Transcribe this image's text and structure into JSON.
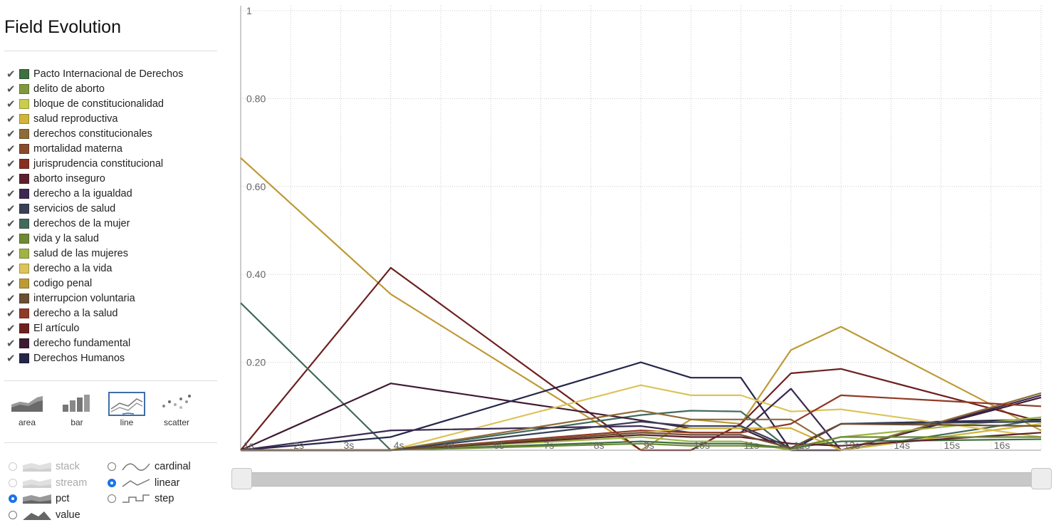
{
  "app": {
    "title": "Field Evolution"
  },
  "legend": [
    {
      "label": "Pacto Internacional de Derechos",
      "color": "#3e7040"
    },
    {
      "label": "delito de aborto",
      "color": "#7f9a3c"
    },
    {
      "label": "bloque de constitucionalidad",
      "color": "#c9cc4e"
    },
    {
      "label": "salud reproductiva",
      "color": "#d1b43c"
    },
    {
      "label": "derechos constitucionales",
      "color": "#8f6b38"
    },
    {
      "label": "mortalidad materna",
      "color": "#8a4a2c"
    },
    {
      "label": "jurisprudencia constitucional",
      "color": "#862f22"
    },
    {
      "label": "aborto inseguro",
      "color": "#5e1f2c"
    },
    {
      "label": "derecho a la igualdad",
      "color": "#3c2a52"
    },
    {
      "label": "servicios de salud",
      "color": "#383f56"
    },
    {
      "label": "derechos de la mujer",
      "color": "#426a5c"
    },
    {
      "label": "vida y la salud",
      "color": "#6e8a34"
    },
    {
      "label": "salud de las mujeres",
      "color": "#9fb444"
    },
    {
      "label": "derecho a la vida",
      "color": "#dcc45a"
    },
    {
      "label": "codigo penal",
      "color": "#bd9a36"
    },
    {
      "label": "interrupcion voluntaria",
      "color": "#6b4f33"
    },
    {
      "label": "derecho a la salud",
      "color": "#913a26"
    },
    {
      "label": "El artículo",
      "color": "#6e2020"
    },
    {
      "label": "derecho fundamental",
      "color": "#3e1a32"
    },
    {
      "label": "Derechos Humanos",
      "color": "#25264a"
    }
  ],
  "renderers": [
    {
      "label": "area",
      "icon": "area-chart-icon",
      "active": false
    },
    {
      "label": "bar",
      "icon": "bar-chart-icon",
      "active": false
    },
    {
      "label": "line",
      "icon": "line-chart-icon",
      "active": true
    },
    {
      "label": "scatter",
      "icon": "scatter-chart-icon",
      "active": false
    }
  ],
  "offset_options": [
    {
      "label": "stack",
      "icon": "stack-icon",
      "checked": false,
      "disabled": true
    },
    {
      "label": "stream",
      "icon": "stream-icon",
      "checked": false,
      "disabled": true
    },
    {
      "label": "pct",
      "icon": "pct-icon",
      "checked": true,
      "disabled": false
    },
    {
      "label": "value",
      "icon": "value-icon",
      "checked": false,
      "disabled": false
    }
  ],
  "interpolation_options": [
    {
      "label": "cardinal",
      "icon": "cardinal-icon",
      "checked": false
    },
    {
      "label": "linear",
      "icon": "linear-icon",
      "checked": true
    },
    {
      "label": "step",
      "icon": "step-icon",
      "checked": false
    }
  ],
  "slider": {
    "min_label": "",
    "max_label": ""
  },
  "colors": {
    "accent": "#1a73e8",
    "grid": "#cccccc"
  },
  "chart_data": {
    "type": "line",
    "x": [
      "1s",
      "2s",
      "3s",
      "4s",
      "5s",
      "6s",
      "7s",
      "8s",
      "9s",
      "10s",
      "11s",
      "12s",
      "13s",
      "14s",
      "15s",
      "16s",
      ""
    ],
    "y_ticks": [
      "",
      "0.20",
      "0.40",
      "0.60",
      "0.80",
      "1"
    ],
    "ylim": [
      0,
      1
    ],
    "grid": true,
    "series": [
      {
        "name": "codigo penal",
        "values": [
          0.665,
          null,
          null,
          0.355,
          null,
          null,
          null,
          null,
          0.0,
          0.07,
          0.06,
          0.228,
          0.281,
          null,
          null,
          null,
          0.045
        ]
      },
      {
        "name": "El artículo",
        "values": [
          0.0,
          null,
          null,
          0.415,
          null,
          null,
          null,
          null,
          0.0,
          0.0,
          0.06,
          0.175,
          0.185,
          null,
          null,
          null,
          0.065
        ]
      },
      {
        "name": "derechos de la mujer",
        "values": [
          0.335,
          null,
          null,
          0.0,
          null,
          null,
          null,
          null,
          0.08,
          0.09,
          0.088,
          0.0,
          0.0,
          null,
          null,
          null,
          0.07
        ]
      },
      {
        "name": "derecho fundamental",
        "values": [
          0.0,
          null,
          null,
          0.152,
          null,
          null,
          null,
          null,
          0.068,
          0.05,
          0.05,
          0.0,
          0.0,
          null,
          null,
          null,
          0.12
        ]
      },
      {
        "name": "Derechos Humanos",
        "values": [
          0.0,
          null,
          null,
          0.03,
          null,
          null,
          null,
          null,
          0.2,
          0.165,
          0.165,
          0.0,
          0.06,
          null,
          null,
          null,
          0.07
        ]
      },
      {
        "name": "derecho a la vida",
        "values": [
          0.0,
          null,
          null,
          0.0,
          null,
          null,
          null,
          null,
          0.148,
          0.125,
          0.125,
          0.088,
          0.093,
          null,
          null,
          null,
          0.03
        ]
      },
      {
        "name": "derecho a la igualdad",
        "values": [
          0.0,
          null,
          null,
          0.045,
          null,
          null,
          null,
          null,
          0.055,
          0.04,
          0.04,
          0.14,
          0.0,
          null,
          null,
          null,
          0.125
        ]
      },
      {
        "name": "derechos constitucionales",
        "values": [
          0.0,
          null,
          null,
          0.0,
          null,
          null,
          null,
          null,
          0.09,
          0.07,
          0.07,
          0.07,
          0.0,
          null,
          null,
          null,
          0.13
        ]
      },
      {
        "name": "derecho a la salud",
        "values": [
          0.0,
          null,
          null,
          0.0,
          null,
          null,
          null,
          null,
          0.045,
          0.04,
          0.04,
          0.06,
          0.125,
          null,
          null,
          null,
          0.1
        ]
      },
      {
        "name": "salud reproductiva",
        "values": [
          0.0,
          null,
          null,
          0.0,
          null,
          null,
          null,
          null,
          0.04,
          0.05,
          0.05,
          0.05,
          0.0,
          null,
          null,
          null,
          0.06
        ]
      },
      {
        "name": "salud de las mujeres",
        "values": [
          0.0,
          null,
          null,
          0.0,
          null,
          null,
          null,
          null,
          0.03,
          0.02,
          0.02,
          0.0,
          0.03,
          null,
          null,
          null,
          0.075
        ]
      },
      {
        "name": "Pacto Internacional de Derechos",
        "values": [
          0.0,
          null,
          null,
          0.0,
          null,
          null,
          null,
          null,
          0.02,
          0.015,
          0.015,
          0.005,
          0.02,
          null,
          null,
          null,
          0.025
        ]
      },
      {
        "name": "aborto inseguro",
        "values": [
          0.0,
          null,
          null,
          0.0,
          null,
          null,
          null,
          null,
          0.035,
          0.03,
          0.03,
          0.015,
          0.01,
          null,
          null,
          null,
          0.04
        ]
      },
      {
        "name": "servicios de salud",
        "values": [
          0.0,
          null,
          null,
          0.0,
          null,
          null,
          null,
          null,
          0.065,
          0.055,
          0.055,
          0.005,
          0.06,
          null,
          null,
          null,
          0.065
        ]
      },
      {
        "name": "vida y la salud",
        "values": [
          0.0,
          null,
          null,
          0.0,
          null,
          null,
          null,
          null,
          0.015,
          0.01,
          0.01,
          0.005,
          0.03,
          null,
          null,
          null,
          0.03
        ]
      },
      {
        "name": "interrupcion voluntaria",
        "values": [
          0.0,
          null,
          null,
          0.0,
          null,
          null,
          null,
          null,
          0.04,
          0.035,
          0.035,
          0.005,
          0.06,
          null,
          null,
          null,
          0.055
        ]
      }
    ]
  }
}
